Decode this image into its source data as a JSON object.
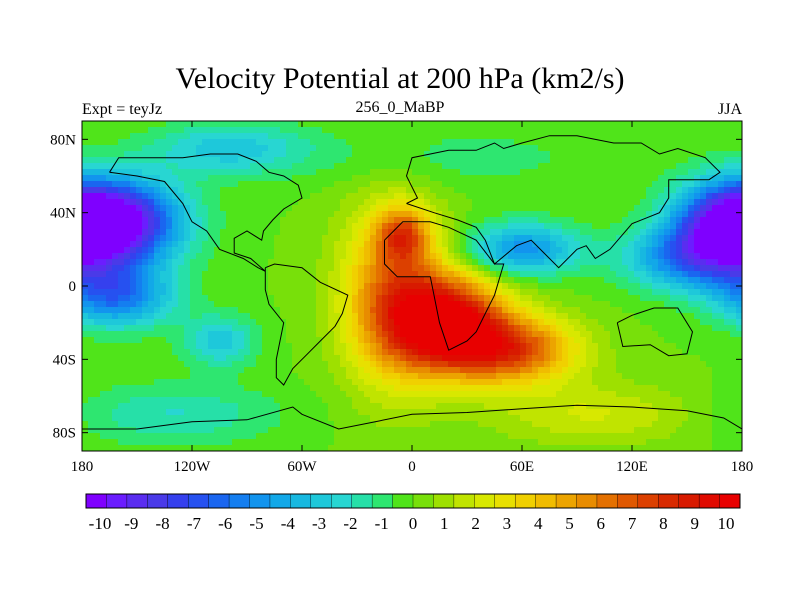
{
  "title": "Velocity Potential at 200 hPa (km2/s)",
  "subtitle_left": "Expt = teyJz",
  "subtitle_center": "256_0_MaBP",
  "subtitle_right": "JJA",
  "chart_data": {
    "type": "heatmap",
    "title": "Velocity Potential at 200 hPa (km2/s)",
    "xlim": [
      -180,
      180
    ],
    "ylim": [
      -90,
      90
    ],
    "x_ticks": [
      {
        "value": -180,
        "label": "180"
      },
      {
        "value": -120,
        "label": "120W"
      },
      {
        "value": -60,
        "label": "60W"
      },
      {
        "value": 0,
        "label": "0"
      },
      {
        "value": 60,
        "label": "60E"
      },
      {
        "value": 120,
        "label": "120E"
      },
      {
        "value": 180,
        "label": "180"
      }
    ],
    "y_ticks": [
      {
        "value": 80,
        "label": "80N"
      },
      {
        "value": 40,
        "label": "40N"
      },
      {
        "value": 0,
        "label": "0"
      },
      {
        "value": -40,
        "label": "40S"
      },
      {
        "value": -80,
        "label": "80S"
      }
    ],
    "colorbar": {
      "min": -10.5,
      "max": 10.5,
      "labels": [
        "-10",
        "-9",
        "-8",
        "-7",
        "-6",
        "-5",
        "-4",
        "-3",
        "-2",
        "-1",
        "0",
        "1",
        "2",
        "3",
        "4",
        "5",
        "6",
        "7",
        "8",
        "9",
        "10"
      ],
      "colors": [
        "#7f00ff",
        "#6b1dff",
        "#5a2df0",
        "#4a3ae8",
        "#3540ee",
        "#2651f0",
        "#1a66f0",
        "#147ef0",
        "#1294ee",
        "#12a8e8",
        "#17b8e0",
        "#1ec8da",
        "#28d6d2",
        "#26e0a8",
        "#2ee670",
        "#50e41a",
        "#78e00a",
        "#9ee000",
        "#c0e400",
        "#d8e800",
        "#e8e000",
        "#f0d000",
        "#f0bc00",
        "#eca400",
        "#e88c00",
        "#e47000",
        "#e05800",
        "#dc4000",
        "#d82a00",
        "#d81a00",
        "#e00a00",
        "#e80000"
      ]
    },
    "features": [
      {
        "lon": -160,
        "lat": 35,
        "value": -9,
        "sx": 25,
        "sy": 16
      },
      {
        "lon": -162,
        "lat": -5,
        "value": -6,
        "sx": 22,
        "sy": 12
      },
      {
        "lon": 175,
        "lat": 33,
        "value": -9,
        "sx": 22,
        "sy": 16
      },
      {
        "lon": 150,
        "lat": 15,
        "value": -5,
        "sx": 24,
        "sy": 12
      },
      {
        "lon": -105,
        "lat": -30,
        "value": -3,
        "sx": 14,
        "sy": 10
      },
      {
        "lon": 20,
        "lat": -20,
        "value": 10,
        "sx": 22,
        "sy": 18
      },
      {
        "lon": 55,
        "lat": -35,
        "value": 7,
        "sx": 25,
        "sy": 13
      },
      {
        "lon": -5,
        "lat": 28,
        "value": 5,
        "sx": 10,
        "sy": 10
      },
      {
        "lon": -10,
        "lat": -5,
        "value": 6,
        "sx": 20,
        "sy": 34
      },
      {
        "lon": 60,
        "lat": 20,
        "value": -5,
        "sx": 22,
        "sy": 10
      },
      {
        "lon": 20,
        "lat": 70,
        "value": -1,
        "sx": 60,
        "sy": 12
      },
      {
        "lon": -100,
        "lat": 75,
        "value": -3,
        "sx": 30,
        "sy": 10
      },
      {
        "lon": -130,
        "lat": -70,
        "value": -2,
        "sx": 40,
        "sy": 12
      },
      {
        "lon": 100,
        "lat": -70,
        "value": 2,
        "sx": 40,
        "sy": 12
      }
    ],
    "coastlines": [
      [
        [
          -3,
          45
        ],
        [
          3,
          48
        ],
        [
          -3,
          60
        ],
        [
          0,
          70
        ],
        [
          20,
          74
        ],
        [
          35,
          74
        ],
        [
          45,
          78
        ],
        [
          50,
          75
        ],
        [
          60,
          78
        ],
        [
          75,
          82
        ],
        [
          90,
          82
        ],
        [
          110,
          78
        ],
        [
          125,
          78
        ],
        [
          135,
          72
        ],
        [
          145,
          75
        ],
        [
          160,
          70
        ],
        [
          168,
          62
        ],
        [
          162,
          58
        ],
        [
          150,
          58
        ],
        [
          140,
          58
        ],
        [
          140,
          48
        ],
        [
          135,
          40
        ],
        [
          120,
          34
        ],
        [
          108,
          20
        ],
        [
          100,
          15
        ],
        [
          95,
          22
        ],
        [
          90,
          20
        ],
        [
          80,
          10
        ],
        [
          72,
          18
        ],
        [
          65,
          25
        ],
        [
          57,
          22
        ],
        [
          45,
          12
        ],
        [
          40,
          25
        ],
        [
          35,
          32
        ],
        [
          25,
          36
        ],
        [
          12,
          40
        ],
        [
          -3,
          45
        ]
      ],
      [
        [
          -15,
          25
        ],
        [
          -15,
          12
        ],
        [
          -8,
          5
        ],
        [
          10,
          5
        ],
        [
          12,
          -5
        ],
        [
          15,
          -20
        ],
        [
          20,
          -35
        ],
        [
          30,
          -30
        ],
        [
          35,
          -25
        ],
        [
          40,
          -15
        ],
        [
          45,
          -5
        ],
        [
          50,
          12
        ],
        [
          45,
          12
        ],
        [
          35,
          25
        ],
        [
          20,
          32
        ],
        [
          10,
          35
        ],
        [
          -5,
          35
        ],
        [
          -15,
          25
        ]
      ],
      [
        [
          112,
          -20
        ],
        [
          115,
          -33
        ],
        [
          130,
          -32
        ],
        [
          140,
          -38
        ],
        [
          150,
          -37
        ],
        [
          153,
          -25
        ],
        [
          145,
          -12
        ],
        [
          132,
          -12
        ],
        [
          120,
          -16
        ],
        [
          112,
          -20
        ]
      ],
      [
        [
          -80,
          10
        ],
        [
          -75,
          12
        ],
        [
          -60,
          10
        ],
        [
          -50,
          2
        ],
        [
          -35,
          -5
        ],
        [
          -38,
          -15
        ],
        [
          -42,
          -22
        ],
        [
          -50,
          -30
        ],
        [
          -58,
          -38
        ],
        [
          -65,
          -45
        ],
        [
          -70,
          -54
        ],
        [
          -74,
          -50
        ],
        [
          -74,
          -40
        ],
        [
          -72,
          -30
        ],
        [
          -70,
          -20
        ],
        [
          -78,
          -10
        ],
        [
          -80,
          -2
        ],
        [
          -80,
          10
        ]
      ],
      [
        [
          -165,
          62
        ],
        [
          -160,
          70
        ],
        [
          -140,
          70
        ],
        [
          -125,
          70
        ],
        [
          -110,
          72
        ],
        [
          -95,
          72
        ],
        [
          -85,
          68
        ],
        [
          -78,
          62
        ],
        [
          -70,
          60
        ],
        [
          -62,
          55
        ],
        [
          -60,
          48
        ],
        [
          -70,
          42
        ],
        [
          -76,
          36
        ],
        [
          -81,
          30
        ],
        [
          -82,
          25
        ],
        [
          -90,
          30
        ],
        [
          -97,
          26
        ],
        [
          -97,
          18
        ],
        [
          -88,
          15
        ],
        [
          -80,
          8
        ],
        [
          -84,
          10
        ],
        [
          -92,
          15
        ],
        [
          -105,
          20
        ],
        [
          -112,
          30
        ],
        [
          -120,
          35
        ],
        [
          -125,
          45
        ],
        [
          -135,
          57
        ],
        [
          -150,
          60
        ],
        [
          -165,
          62
        ]
      ],
      [
        [
          -180,
          -78
        ],
        [
          -150,
          -78
        ],
        [
          -120,
          -74
        ],
        [
          -90,
          -73
        ],
        [
          -65,
          -66
        ],
        [
          -60,
          -70
        ],
        [
          -40,
          -78
        ],
        [
          -20,
          -74
        ],
        [
          0,
          -70
        ],
        [
          30,
          -69
        ],
        [
          60,
          -67
        ],
        [
          90,
          -65
        ],
        [
          120,
          -66
        ],
        [
          150,
          -68
        ],
        [
          170,
          -72
        ],
        [
          180,
          -78
        ]
      ]
    ]
  }
}
